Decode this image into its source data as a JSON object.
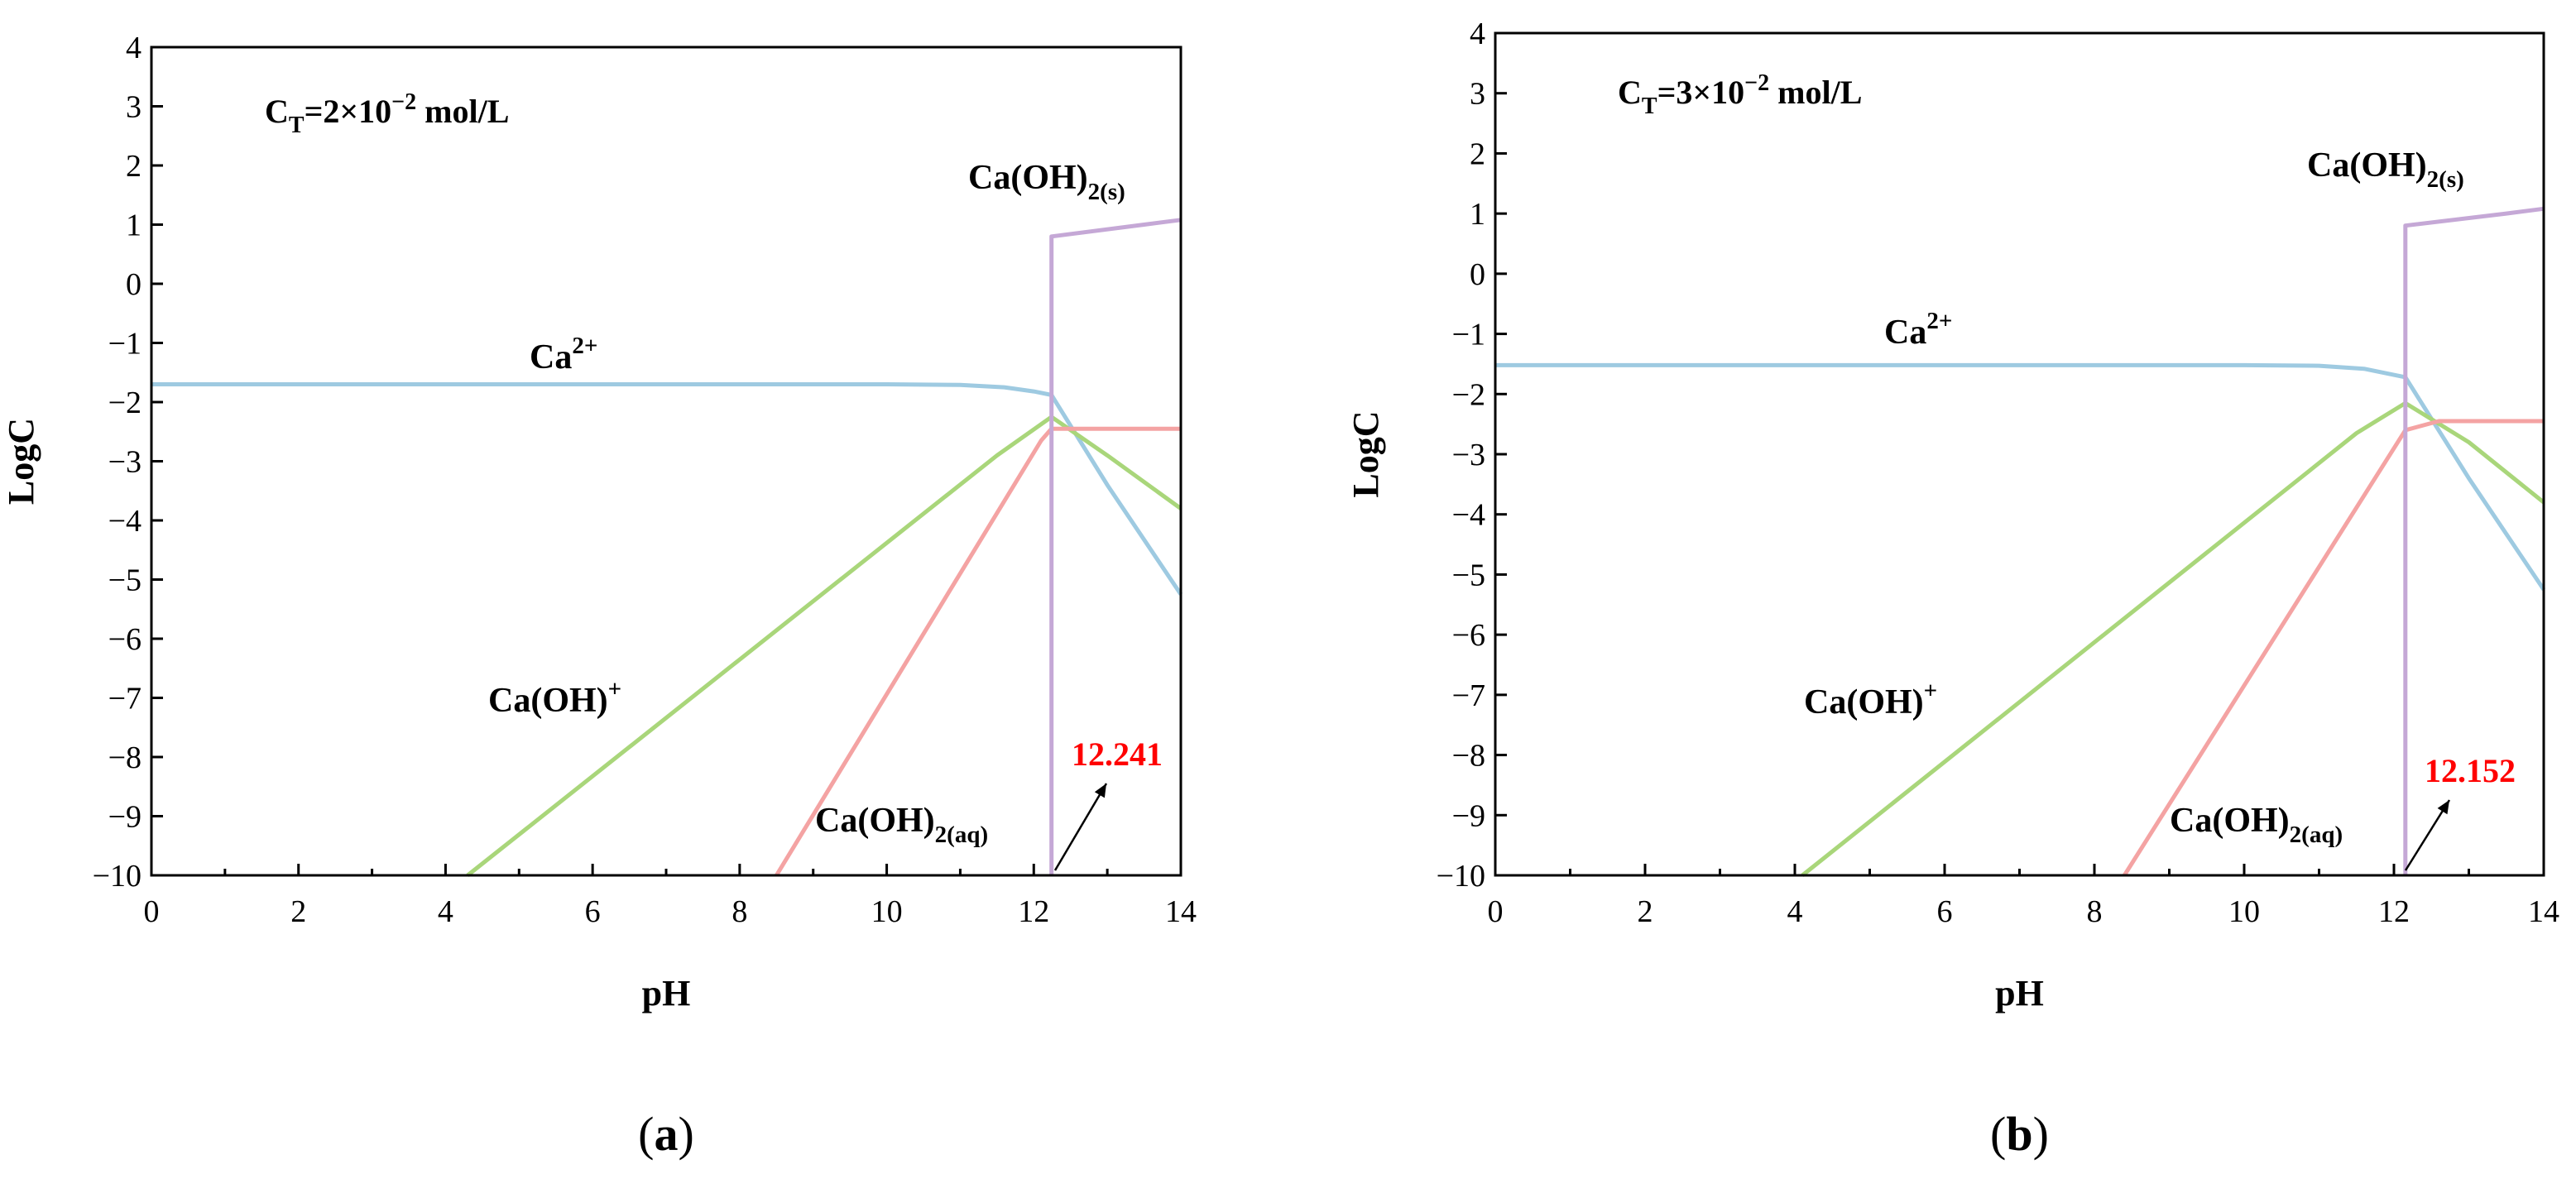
{
  "chart_data": [
    {
      "type": "line",
      "panel_label": "a",
      "xlabel": "pH",
      "ylabel": "LogC",
      "xlim": [
        0,
        14
      ],
      "ylim": [
        -10,
        4
      ],
      "xticks": [
        0,
        2,
        4,
        6,
        8,
        10,
        12,
        14
      ],
      "yticks": [
        -10,
        -9,
        -8,
        -7,
        -6,
        -5,
        -4,
        -3,
        -2,
        -1,
        0,
        1,
        2,
        3,
        4
      ],
      "concentration": {
        "pre": "C",
        "sub": "T",
        "mid": "=2×10",
        "sup": "−2",
        "post": " mol/L"
      },
      "series": [
        {
          "key": "ca",
          "color": "#9ecae1",
          "x": [
            0,
            4,
            8,
            10,
            11,
            11.6,
            12,
            12.241,
            13,
            14
          ],
          "y": [
            -1.7,
            -1.7,
            -1.7,
            -1.7,
            -1.71,
            -1.75,
            -1.82,
            -1.88,
            -3.4,
            -5.25
          ]
        },
        {
          "key": "caoh",
          "color": "#a9d67a",
          "x": [
            4.3,
            11.5,
            12.241,
            13,
            14
          ],
          "y": [
            -10,
            -2.9,
            -2.25,
            -2.9,
            -3.8
          ]
        },
        {
          "key": "aq",
          "color": "#f4a3a3",
          "x": [
            8.5,
            12.1,
            12.241,
            14
          ],
          "y": [
            -10,
            -2.65,
            -2.45,
            -2.45
          ]
        },
        {
          "key": "solid",
          "color": "#c5a8d6",
          "x": [
            12.241,
            12.241,
            12.241,
            13.5,
            14
          ],
          "y": [
            -10,
            0.8,
            0.8,
            1.0,
            1.08
          ]
        }
      ],
      "labels": {
        "ca": {
          "base": "Ca",
          "sup": "2+"
        },
        "caoh": {
          "base": "Ca(OH)",
          "sup": "+"
        },
        "aq": {
          "base": "Ca(OH)",
          "sub": "2(aq)"
        },
        "solid": {
          "base": "Ca(OH)",
          "sub": "2(s)"
        }
      },
      "annotation": {
        "text": "12.241",
        "color": "#ff0000",
        "x": 12.241,
        "y": -10
      }
    },
    {
      "type": "line",
      "panel_label": "b",
      "xlabel": "pH",
      "ylabel": "LogC",
      "xlim": [
        0,
        14
      ],
      "ylim": [
        -10,
        4
      ],
      "xticks": [
        0,
        2,
        4,
        6,
        8,
        10,
        12,
        14
      ],
      "yticks": [
        -10,
        -9,
        -8,
        -7,
        -6,
        -5,
        -4,
        -3,
        -2,
        -1,
        0,
        1,
        2,
        3,
        4
      ],
      "concentration": {
        "pre": "C",
        "sub": "T",
        "mid": "=3×10",
        "sup": "−2",
        "post": " mol/L"
      },
      "series": [
        {
          "key": "ca",
          "color": "#9ecae1",
          "x": [
            0,
            4,
            8,
            10,
            11,
            11.6,
            12.152,
            13,
            14
          ],
          "y": [
            -1.52,
            -1.52,
            -1.52,
            -1.52,
            -1.53,
            -1.58,
            -1.72,
            -3.4,
            -5.25
          ]
        },
        {
          "key": "caoh",
          "color": "#a9d67a",
          "x": [
            4.1,
            11.5,
            12.152,
            13,
            14
          ],
          "y": [
            -10,
            -2.65,
            -2.15,
            -2.8,
            -3.8
          ]
        },
        {
          "key": "aq",
          "color": "#f4a3a3",
          "x": [
            8.4,
            12.152,
            12.6,
            14
          ],
          "y": [
            -10,
            -2.6,
            -2.45,
            -2.45
          ]
        },
        {
          "key": "solid",
          "color": "#c5a8d6",
          "x": [
            12.152,
            12.152,
            12.152,
            13.5,
            14
          ],
          "y": [
            -10,
            0.8,
            0.8,
            1.0,
            1.08
          ]
        }
      ],
      "labels": {
        "ca": {
          "base": "Ca",
          "sup": "2+"
        },
        "caoh": {
          "base": "Ca(OH)",
          "sup": "+"
        },
        "aq": {
          "base": "Ca(OH)",
          "sub": "2(aq)"
        },
        "solid": {
          "base": "Ca(OH)",
          "sub": "2(s)"
        }
      },
      "annotation": {
        "text": "12.152",
        "color": "#ff0000",
        "x": 12.152,
        "y": -10
      }
    }
  ]
}
